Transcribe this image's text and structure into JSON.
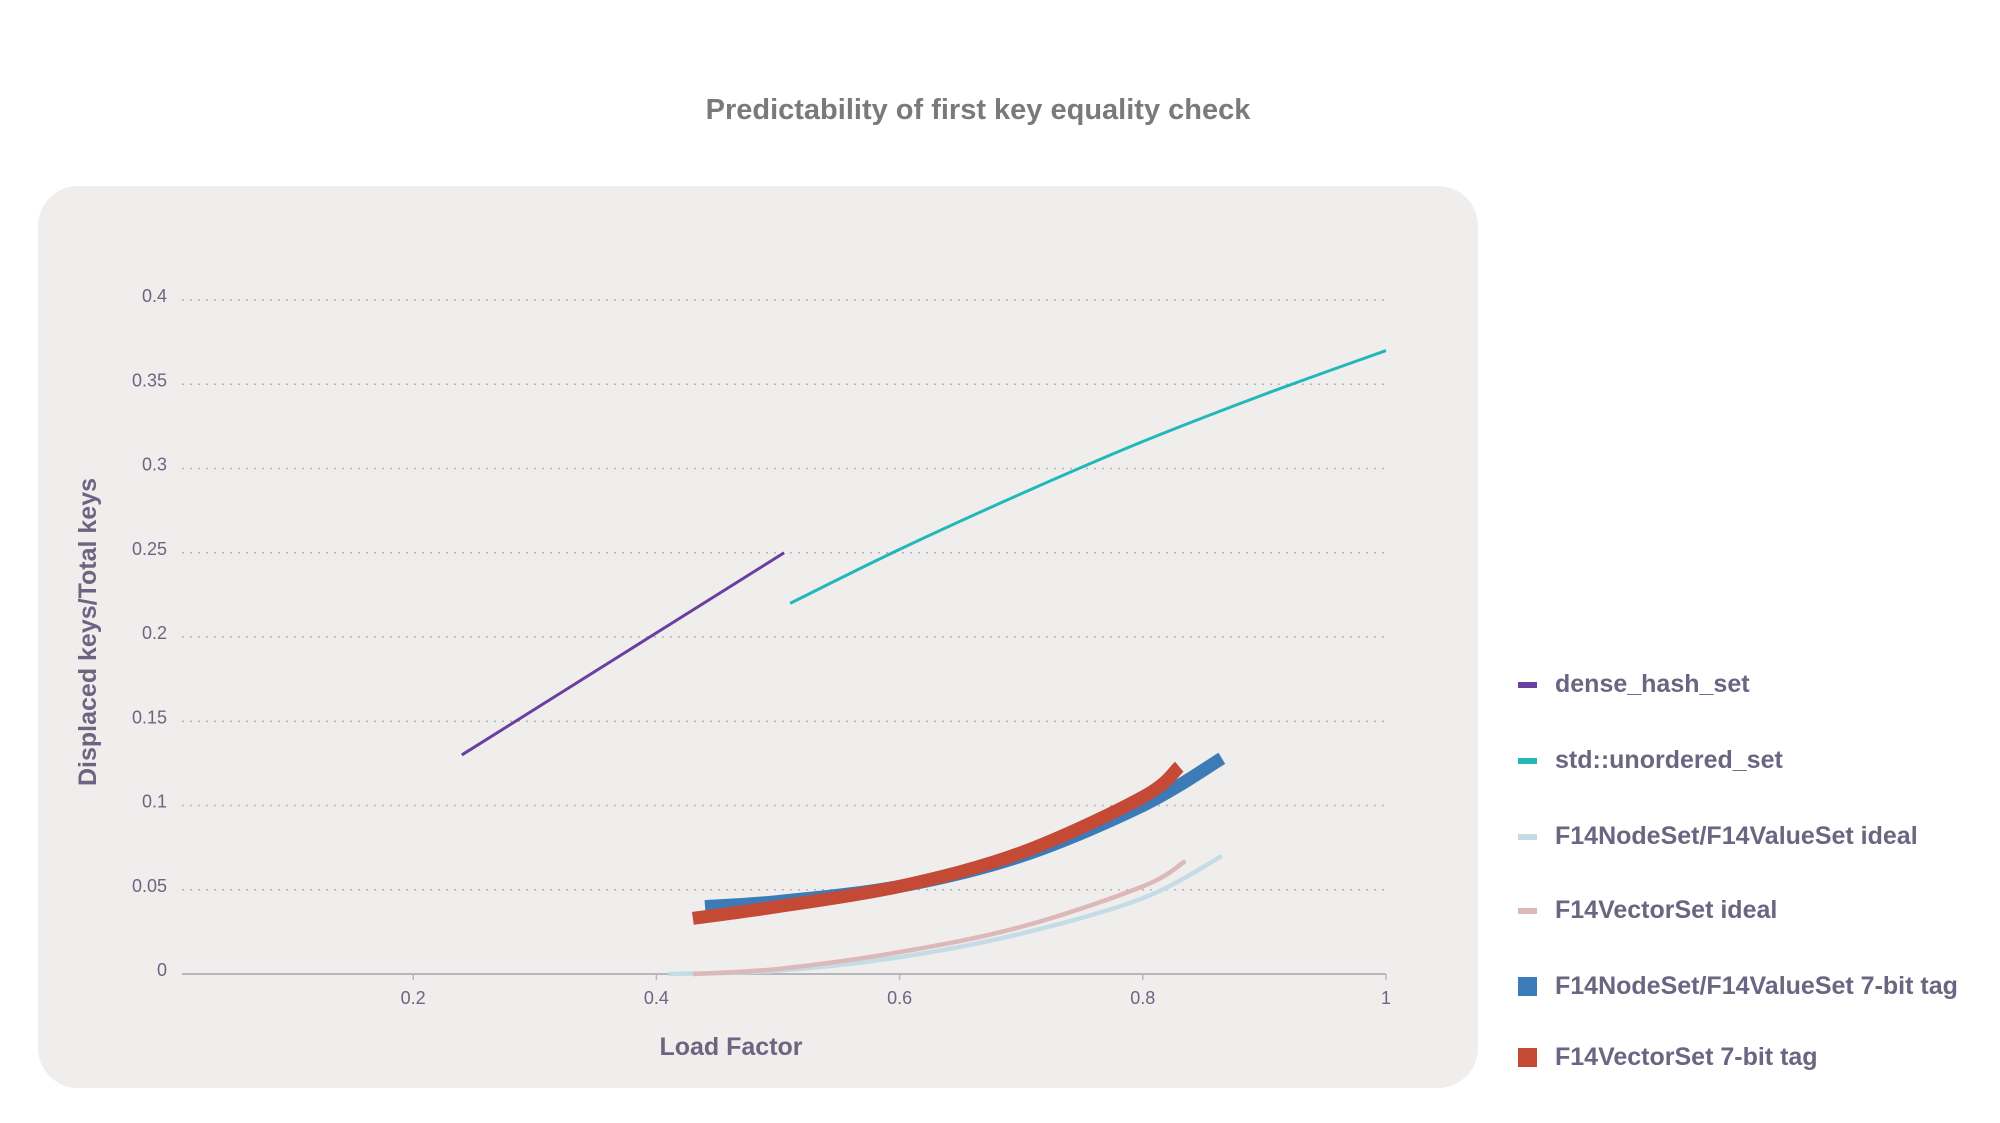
{
  "chart_data": {
    "type": "line",
    "title": "Predictability of first key equality check",
    "xlabel": "Load Factor",
    "ylabel": "Displaced keys/Total keys",
    "xlim": [
      0,
      1
    ],
    "ylim": [
      0,
      0.4
    ],
    "xticks": [
      "0.2",
      "0.4",
      "0.6",
      "0.8",
      "1"
    ],
    "xtick_values": [
      0.2,
      0.4,
      0.6,
      0.8,
      1
    ],
    "yticks": [
      "0",
      "0.05",
      "0.1",
      "0.15",
      "0.2",
      "0.25",
      "0.3",
      "0.35",
      "0.4"
    ],
    "ytick_values": [
      0,
      0.05,
      0.1,
      0.15,
      0.2,
      0.25,
      0.3,
      0.35,
      0.4
    ],
    "grid": "horizontal dotted",
    "legend_position": "right",
    "series": [
      {
        "name": "dense_hash_set",
        "color": "#6a3fa0",
        "width": "thin",
        "x": [
          0.24,
          0.505
        ],
        "y": [
          0.13,
          0.25
        ]
      },
      {
        "name": "std::unordered_set",
        "color": "#22b8b8",
        "width": "thin",
        "x": [
          0.51,
          0.6,
          0.7,
          0.8,
          0.9,
          1.0
        ],
        "y": [
          0.22,
          0.252,
          0.285,
          0.316,
          0.344,
          0.37
        ]
      },
      {
        "name": "F14NodeSet/F14ValueSet ideal",
        "color": "#c5dce6",
        "width": "medium",
        "x": [
          0.41,
          0.5,
          0.6,
          0.7,
          0.8,
          0.865
        ],
        "y": [
          0,
          0.002,
          0.01,
          0.024,
          0.045,
          0.07
        ]
      },
      {
        "name": "F14VectorSet ideal",
        "color": "#dcb8b8",
        "width": "medium",
        "x": [
          0.43,
          0.5,
          0.6,
          0.7,
          0.8,
          0.835
        ],
        "y": [
          0,
          0.003,
          0.013,
          0.028,
          0.052,
          0.067
        ]
      },
      {
        "name": "F14NodeSet/F14ValueSet 7-bit tag",
        "color": "#3d7ab8",
        "width": "thick",
        "x": [
          0.44,
          0.5,
          0.6,
          0.7,
          0.8,
          0.865
        ],
        "y": [
          0.04,
          0.043,
          0.052,
          0.07,
          0.1,
          0.128
        ]
      },
      {
        "name": "F14VectorSet 7-bit tag",
        "color": "#c44a35",
        "width": "thick",
        "x": [
          0.43,
          0.5,
          0.6,
          0.7,
          0.8,
          0.83
        ],
        "y": [
          0.033,
          0.04,
          0.052,
          0.072,
          0.105,
          0.123
        ]
      }
    ]
  }
}
